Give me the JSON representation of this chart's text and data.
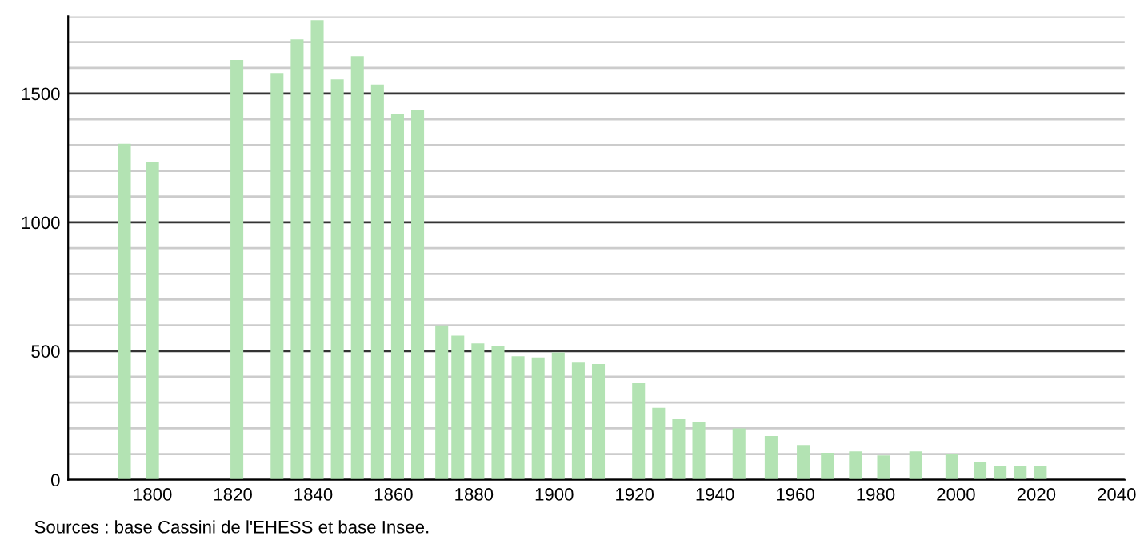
{
  "chart_data": {
    "type": "bar",
    "color": "#b3e3b3",
    "x": [
      1793,
      1800,
      1821,
      1831,
      1836,
      1841,
      1846,
      1851,
      1856,
      1861,
      1866,
      1872,
      1876,
      1881,
      1886,
      1891,
      1896,
      1901,
      1906,
      1911,
      1921,
      1926,
      1931,
      1936,
      1946,
      1954,
      1962,
      1968,
      1975,
      1982,
      1990,
      1999,
      2006,
      2011,
      2016,
      2021
    ],
    "values": [
      1305,
      1235,
      1630,
      1580,
      1710,
      1785,
      1555,
      1645,
      1535,
      1420,
      1435,
      600,
      560,
      530,
      520,
      480,
      475,
      495,
      455,
      450,
      375,
      280,
      235,
      225,
      200,
      170,
      135,
      105,
      110,
      95,
      110,
      100,
      70,
      55,
      55,
      55
    ],
    "xlim": [
      1779,
      2042
    ],
    "xticks": [
      1800,
      1820,
      1840,
      1860,
      1880,
      1900,
      1920,
      1940,
      1960,
      1980,
      2000,
      2020,
      2040
    ],
    "ylim": [
      0,
      1800
    ],
    "yticks": [
      0,
      {
        "value": 100,
        "label": null
      },
      {
        "value": 200,
        "label": null
      },
      {
        "value": 300,
        "label": null
      },
      {
        "value": 400,
        "label": null
      },
      500,
      {
        "value": 600,
        "label": null
      },
      {
        "value": 700,
        "label": null
      },
      {
        "value": 800,
        "label": null
      },
      {
        "value": 900,
        "label": null
      },
      1000,
      {
        "value": 1100,
        "label": null
      },
      {
        "value": 1200,
        "label": null
      },
      {
        "value": 1300,
        "label": null
      },
      {
        "value": 1400,
        "label": null
      },
      1500,
      {
        "value": 1600,
        "label": null
      },
      {
        "value": 1700,
        "label": null
      },
      {
        "value": 1800,
        "label": null
      }
    ],
    "grid": "y",
    "annotations": [
      "Sources : base Cassini de l'EHESS et base Insee."
    ]
  }
}
